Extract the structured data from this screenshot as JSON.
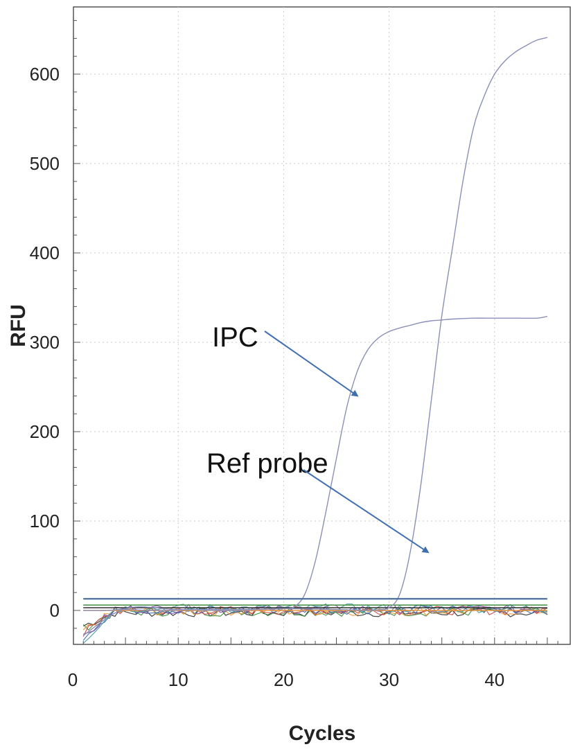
{
  "chart_data": {
    "type": "line",
    "xlabel": "Cycles",
    "ylabel": "RFU",
    "xlim": [
      0,
      47
    ],
    "ylim": [
      -38,
      680
    ],
    "xticks": [
      0,
      10,
      20,
      30,
      40
    ],
    "yticks": [
      0,
      100,
      200,
      300,
      400,
      500,
      600
    ],
    "grid": true,
    "threshold": {
      "y": 13,
      "color": "#4a6f9e"
    },
    "series": [
      {
        "color": "#8a8fb8",
        "x": [
          1,
          3,
          5,
          8,
          12,
          16,
          20,
          21,
          22,
          23,
          24,
          25,
          26,
          27,
          28,
          29,
          30,
          31,
          32,
          33,
          34,
          35,
          36,
          38,
          40,
          42,
          44,
          45
        ],
        "values": [
          0,
          0,
          1,
          0,
          1,
          1,
          2,
          4,
          18,
          55,
          110,
          170,
          228,
          268,
          292,
          305,
          312,
          316,
          319,
          322,
          324,
          325,
          326,
          327,
          327,
          327,
          327,
          329
        ]
      },
      {
        "color": "#8a8fb8",
        "x": [
          1,
          5,
          10,
          15,
          20,
          25,
          28,
          29,
          30,
          31,
          32,
          33,
          34,
          35,
          36,
          37,
          38,
          39,
          40,
          41,
          42,
          43,
          44,
          45
        ],
        "values": [
          -28,
          2,
          1,
          0,
          2,
          1,
          0,
          1,
          3,
          18,
          65,
          140,
          235,
          330,
          405,
          480,
          540,
          575,
          600,
          615,
          625,
          632,
          638,
          641
        ]
      }
    ],
    "noise_colors": [
      "#2d2d2d",
      "#3e8e3e",
      "#e8953a",
      "#c64a4a",
      "#3f6fb0",
      "#7e4fa8",
      "#4aa0a6"
    ],
    "annotations": [
      {
        "text": "IPC",
        "arrow_to": [
          27,
          240
        ]
      },
      {
        "text": "Ref probe",
        "arrow_to": [
          33.7,
          65
        ]
      }
    ]
  }
}
